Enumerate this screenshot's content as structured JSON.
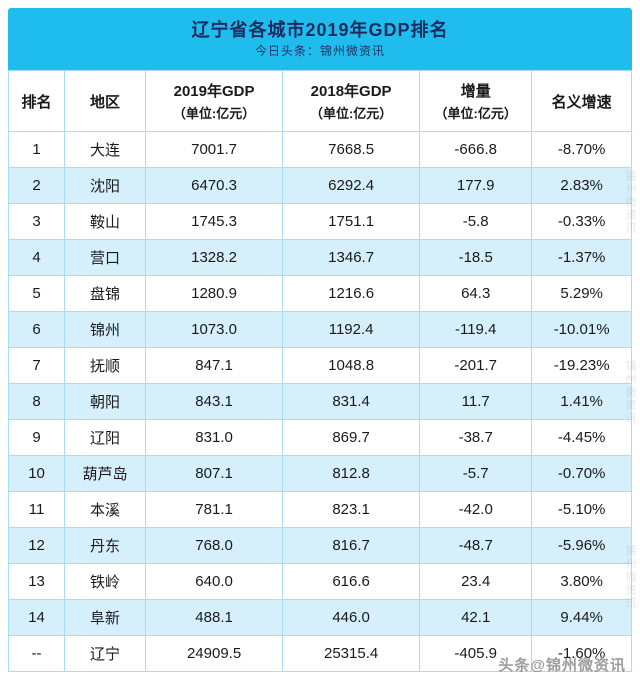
{
  "banner": {
    "title": "辽宁省各城市2019年GDP排名",
    "subtitle": "今日头条：锦州微资讯"
  },
  "watermarks": {
    "bottom": "头条@锦州微资讯",
    "side": "锦州微资讯"
  },
  "colors": {
    "banner_bg": "#1fbdee",
    "banner_text": "#1c2a5e",
    "row_alt_bg": "#d5effb",
    "grid_line": "#a9ddf3",
    "body_text": "#1a1a1a",
    "watermark_gray": "#8d8d8d"
  },
  "chart_data": {
    "type": "table",
    "title": "辽宁省各城市2019年GDP排名",
    "subtitle": "今日头条：锦州微资讯",
    "columns": [
      {
        "label": "排名",
        "unit": ""
      },
      {
        "label": "地区",
        "unit": ""
      },
      {
        "label": "2019年GDP",
        "unit": "（单位:亿元）"
      },
      {
        "label": "2018年GDP",
        "unit": "（单位:亿元）"
      },
      {
        "label": "增量",
        "unit": "（单位:亿元）"
      },
      {
        "label": "名义增速",
        "unit": ""
      }
    ],
    "rows": [
      [
        "1",
        "大连",
        "7001.7",
        "7668.5",
        "-666.8",
        "-8.70%"
      ],
      [
        "2",
        "沈阳",
        "6470.3",
        "6292.4",
        "177.9",
        "2.83%"
      ],
      [
        "3",
        "鞍山",
        "1745.3",
        "1751.1",
        "-5.8",
        "-0.33%"
      ],
      [
        "4",
        "营口",
        "1328.2",
        "1346.7",
        "-18.5",
        "-1.37%"
      ],
      [
        "5",
        "盘锦",
        "1280.9",
        "1216.6",
        "64.3",
        "5.29%"
      ],
      [
        "6",
        "锦州",
        "1073.0",
        "1192.4",
        "-119.4",
        "-10.01%"
      ],
      [
        "7",
        "抚顺",
        "847.1",
        "1048.8",
        "-201.7",
        "-19.23%"
      ],
      [
        "8",
        "朝阳",
        "843.1",
        "831.4",
        "11.7",
        "1.41%"
      ],
      [
        "9",
        "辽阳",
        "831.0",
        "869.7",
        "-38.7",
        "-4.45%"
      ],
      [
        "10",
        "葫芦岛",
        "807.1",
        "812.8",
        "-5.7",
        "-0.70%"
      ],
      [
        "11",
        "本溪",
        "781.1",
        "823.1",
        "-42.0",
        "-5.10%"
      ],
      [
        "12",
        "丹东",
        "768.0",
        "816.7",
        "-48.7",
        "-5.96%"
      ],
      [
        "13",
        "铁岭",
        "640.0",
        "616.6",
        "23.4",
        "3.80%"
      ],
      [
        "14",
        "阜新",
        "488.1",
        "446.0",
        "42.1",
        "9.44%"
      ],
      [
        "--",
        "辽宁",
        "24909.5",
        "25315.4",
        "-405.9",
        "-1.60%"
      ]
    ]
  }
}
